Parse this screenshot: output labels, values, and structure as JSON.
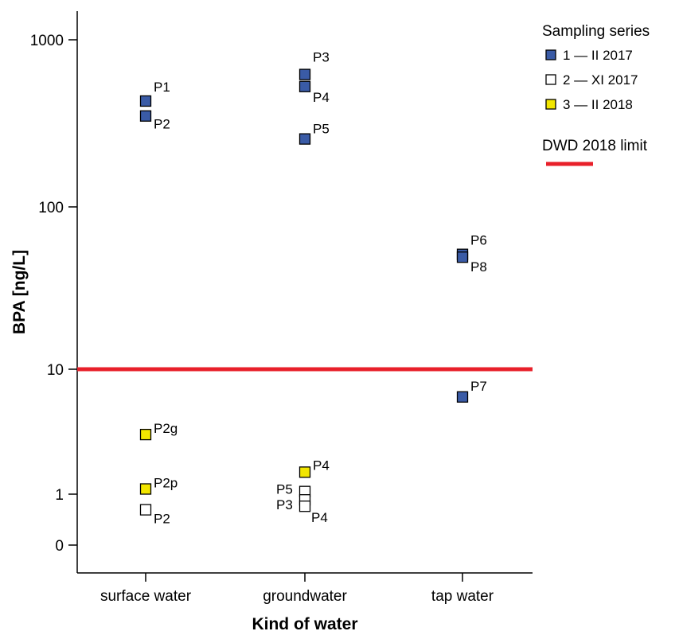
{
  "chart_data": {
    "type": "scatter",
    "xlabel": "Kind of water",
    "ylabel": "BPA [ng/L]",
    "y_scale": "log (broken: 0 shown below 1)",
    "y_ticks": [
      0,
      1,
      10,
      100,
      1000
    ],
    "y_tick_labels": [
      "0",
      "1",
      "10",
      "100",
      "1000"
    ],
    "categories": [
      "surface water",
      "groundwater",
      "tap water"
    ],
    "legend": {
      "title": "Sampling series",
      "placement": "top-right",
      "entries": [
        {
          "label": "1 — II 2017",
          "color": "#3a5ba6",
          "marker": "filled-square"
        },
        {
          "label": "2 — XI 2017",
          "color": "#ffffff",
          "marker": "open-square"
        },
        {
          "label": "3 — II 2018",
          "color": "#f2e600",
          "marker": "filled-square"
        }
      ],
      "limit_label": "DWD 2018 limit",
      "limit_color": "#e8202a"
    },
    "limit_line": {
      "y": 10,
      "label": "DWD 2018 limit",
      "color": "#e8202a"
    },
    "series": [
      {
        "name": "1 — II 2017",
        "color": "#3a5ba6",
        "points": [
          {
            "category": "surface water",
            "y": 430,
            "label": "P1"
          },
          {
            "category": "surface water",
            "y": 350,
            "label": "P2"
          },
          {
            "category": "groundwater",
            "y": 620,
            "label": "P3"
          },
          {
            "category": "groundwater",
            "y": 525,
            "label": "P4"
          },
          {
            "category": "groundwater",
            "y": 255,
            "label": "P5"
          },
          {
            "category": "tap water",
            "y": 51,
            "label": "P6"
          },
          {
            "category": "tap water",
            "y": 49,
            "label": "P8"
          },
          {
            "category": "tap water",
            "y": 6,
            "label": "P7"
          }
        ]
      },
      {
        "name": "2 — XI 2017",
        "color": "#ffffff",
        "points": [
          {
            "category": "surface water",
            "y": 0.75,
            "label": "P2"
          },
          {
            "category": "groundwater",
            "y": 1.05,
            "label": "P5"
          },
          {
            "category": "groundwater",
            "y": 0.9,
            "label": "P3"
          },
          {
            "category": "groundwater",
            "y": 0.8,
            "label": "P4"
          }
        ]
      },
      {
        "name": "3 — II 2018",
        "color": "#f2e600",
        "points": [
          {
            "category": "surface water",
            "y": 3,
            "label": "P2g"
          },
          {
            "category": "surface water",
            "y": 1.1,
            "label": "P2p"
          },
          {
            "category": "groundwater",
            "y": 1.5,
            "label": "P4"
          }
        ]
      }
    ]
  }
}
